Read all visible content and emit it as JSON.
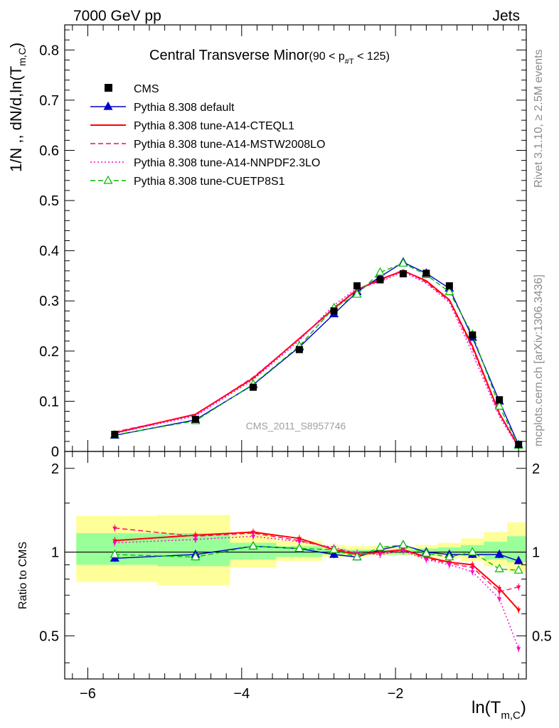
{
  "header": {
    "left": "7000 GeV pp",
    "right": "Jets",
    "plot_title": "Central Transverse Minor",
    "plot_title_cut": "(90 < p",
    "plot_title_cut_sub": "#T",
    "plot_title_cut_end": " < 125)"
  },
  "side_labels": {
    "rivet": "Rivet 3.1.10, ≥ 2.5M events",
    "mcplots": "mcplots.cern.ch [arXiv:1306.3436]"
  },
  "watermark": "CMS_2011_S8957746",
  "axes": {
    "ylabel_main": "1/N ,, dN/d,ln(T",
    "ylabel_main_sub": "m,C",
    "ylabel_main_end": ")",
    "ylabel_ratio": "Ratio to CMS",
    "xlabel": "ln(T",
    "xlabel_sub": "m,C",
    "xlabel_end": ")"
  },
  "chart_data": [
    {
      "type": "line",
      "panel": "main",
      "xlim": [
        -6.3,
        -0.3
      ],
      "ylim": [
        0,
        0.85
      ],
      "x_ticks": [
        -6,
        -4,
        -2
      ],
      "x_tick_labels": [
        "−6",
        "−4",
        "−2"
      ],
      "y_ticks": [
        0,
        0.1,
        0.2,
        0.3,
        0.4,
        0.5,
        0.6,
        0.7,
        0.8
      ],
      "y_tick_labels": [
        "0",
        "0.1",
        "0.2",
        "0.3",
        "0.4",
        "0.5",
        "0.6",
        "0.7",
        "0.8"
      ],
      "x": [
        -5.65,
        -4.6,
        -3.85,
        -3.25,
        -2.8,
        -2.5,
        -2.2,
        -1.9,
        -1.6,
        -1.3,
        -1.0,
        -0.65,
        -0.4
      ],
      "data": {
        "name": "CMS",
        "values": [
          0.034,
          0.064,
          0.128,
          0.203,
          0.28,
          0.33,
          0.342,
          0.354,
          0.355,
          0.33,
          0.232,
          0.103,
          0.014
        ]
      },
      "series": [
        {
          "name": "Pythia 8.308 default",
          "color": "#0000cc",
          "style": "solid",
          "marker": "triangle",
          "values": [
            0.032,
            0.063,
            0.133,
            0.208,
            0.274,
            0.318,
            0.348,
            0.377,
            0.355,
            0.325,
            0.227,
            0.1,
            0.013
          ]
        },
        {
          "name": "Pythia 8.308 tune-A14-CTEQL1",
          "color": "#ff0000",
          "style": "solid",
          "marker": "none",
          "values": [
            0.037,
            0.074,
            0.146,
            0.225,
            0.285,
            0.322,
            0.343,
            0.36,
            0.34,
            0.302,
            0.21,
            0.076,
            0.009
          ]
        },
        {
          "name": "Pythia 8.308 tune-A14-MSTW2008LO",
          "color": "#ff0066",
          "style": "dashed",
          "marker": "none",
          "values": [
            0.039,
            0.073,
            0.148,
            0.224,
            0.287,
            0.323,
            0.34,
            0.362,
            0.337,
            0.3,
            0.205,
            0.074,
            0.01
          ]
        },
        {
          "name": "Pythia 8.308 tune-A14-NNPDF2.3LO",
          "color": "#ff00cc",
          "style": "dotted",
          "marker": "none",
          "values": [
            0.036,
            0.071,
            0.143,
            0.221,
            0.292,
            0.325,
            0.338,
            0.358,
            0.335,
            0.297,
            0.196,
            0.07,
            0.007
          ]
        },
        {
          "name": "Pythia 8.308 tune-CUETP8S1",
          "color": "#00bb00",
          "style": "dashed",
          "marker": "open-triangle",
          "values": [
            0.033,
            0.061,
            0.134,
            0.21,
            0.286,
            0.313,
            0.357,
            0.375,
            0.352,
            0.318,
            0.233,
            0.09,
            0.012
          ]
        }
      ]
    },
    {
      "type": "line",
      "panel": "ratio",
      "xlim": [
        -6.3,
        -0.3
      ],
      "ylim": [
        0.35,
        2.3
      ],
      "y_ticks": [
        0.5,
        1,
        2
      ],
      "y_tick_labels": [
        "0.5",
        "1",
        "2"
      ],
      "x": [
        -5.65,
        -4.6,
        -3.85,
        -3.25,
        -2.8,
        -2.5,
        -2.2,
        -1.9,
        -1.6,
        -1.3,
        -1.0,
        -0.65,
        -0.4
      ],
      "bin_edges": [
        -6.15,
        -5.1,
        -4.15,
        -3.55,
        -2.95,
        -2.65,
        -2.35,
        -2.05,
        -1.75,
        -1.45,
        -1.15,
        -0.85,
        -0.55,
        -0.25
      ],
      "band_yellow": [
        [
          0.78,
          1.35
        ],
        [
          0.76,
          1.36
        ],
        [
          0.88,
          1.16
        ],
        [
          0.93,
          1.1
        ],
        [
          0.96,
          1.06
        ],
        [
          0.96,
          1.05
        ],
        [
          0.97,
          1.05
        ],
        [
          0.97,
          1.04
        ],
        [
          0.96,
          1.06
        ],
        [
          0.95,
          1.08
        ],
        [
          0.93,
          1.12
        ],
        [
          0.89,
          1.18
        ],
        [
          0.85,
          1.28
        ]
      ],
      "band_green": [
        [
          0.9,
          1.17
        ],
        [
          0.89,
          1.17
        ],
        [
          0.94,
          1.08
        ],
        [
          0.96,
          1.05
        ],
        [
          0.98,
          1.03
        ],
        [
          0.98,
          1.02
        ],
        [
          0.98,
          1.02
        ],
        [
          0.98,
          1.02
        ],
        [
          0.98,
          1.03
        ],
        [
          0.98,
          1.04
        ],
        [
          0.97,
          1.06
        ],
        [
          0.94,
          1.09
        ],
        [
          0.92,
          1.14
        ]
      ],
      "series": [
        {
          "name": "Pythia 8.308 default",
          "values": [
            0.95,
            0.98,
            1.05,
            1.03,
            0.98,
            0.96,
            1.02,
            1.06,
            1.0,
            0.98,
            0.98,
            0.98,
            0.93
          ]
        },
        {
          "name": "Pythia 8.308 tune-A14-CTEQL1",
          "values": [
            1.1,
            1.15,
            1.18,
            1.12,
            1.02,
            0.98,
            1.0,
            1.02,
            0.96,
            0.92,
            0.9,
            0.74,
            0.62
          ]
        },
        {
          "name": "Pythia 8.308 tune-A14-MSTW2008LO",
          "values": [
            1.22,
            1.14,
            1.17,
            1.1,
            1.03,
            0.99,
            0.99,
            1.02,
            0.95,
            0.91,
            0.88,
            0.72,
            0.75
          ]
        },
        {
          "name": "Pythia 8.308 tune-A14-NNPDF2.3LO",
          "values": [
            1.08,
            1.11,
            1.14,
            1.09,
            1.04,
            0.99,
            0.98,
            1.01,
            0.94,
            0.9,
            0.85,
            0.68,
            0.45
          ]
        },
        {
          "name": "Pythia 8.308 tune-CUETP8S1",
          "values": [
            0.98,
            0.96,
            1.05,
            1.03,
            1.02,
            0.96,
            1.04,
            1.06,
            0.99,
            0.96,
            1.0,
            0.87,
            0.86
          ]
        }
      ]
    }
  ]
}
